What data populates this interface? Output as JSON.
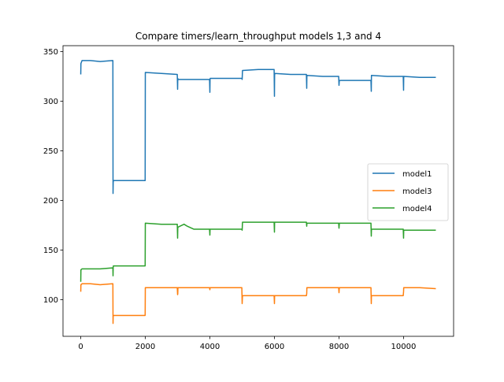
{
  "chart_data": {
    "type": "line",
    "title": "Compare timers/learn_throughput models 1,3 and 4",
    "xlabel": "",
    "ylabel": "",
    "xlim": [
      -550,
      11550
    ],
    "ylim": [
      63,
      356
    ],
    "x_ticks": [
      0,
      2000,
      4000,
      6000,
      8000,
      10000
    ],
    "y_ticks": [
      100,
      150,
      200,
      250,
      300,
      350
    ],
    "grid": false,
    "legend_position": "center-right",
    "series": [
      {
        "name": "model1",
        "color": "#1f77b4",
        "x": [
          0,
          5,
          40,
          300,
          600,
          980,
          995,
          1000,
          1005,
          1010,
          1500,
          1990,
          1995,
          2000,
          2010,
          2500,
          2990,
          3000,
          3005,
          3010,
          3500,
          3990,
          4000,
          4005,
          4010,
          4500,
          4990,
          5000,
          5010,
          5500,
          5990,
          6000,
          6005,
          6010,
          6500,
          6990,
          7000,
          7005,
          7010,
          7500,
          7990,
          8000,
          8010,
          8500,
          8990,
          9000,
          9005,
          9010,
          9500,
          9990,
          10000,
          10005,
          10010,
          10500,
          11000
        ],
        "y": [
          327,
          338,
          341,
          341,
          340,
          341,
          341,
          207,
          218,
          220,
          220,
          220,
          220,
          329,
          329,
          328,
          327,
          312,
          323,
          322,
          322,
          322,
          309,
          322,
          323,
          323,
          323,
          322,
          331,
          332,
          332,
          305,
          326,
          328,
          327,
          327,
          313,
          326,
          326,
          325,
          325,
          316,
          321,
          321,
          321,
          310,
          326,
          326,
          325,
          325,
          311,
          325,
          325,
          324,
          324
        ]
      },
      {
        "name": "model3",
        "color": "#ff7f0e",
        "x": [
          0,
          5,
          40,
          300,
          600,
          980,
          995,
          1000,
          1005,
          1010,
          1500,
          1990,
          1995,
          2000,
          2010,
          2500,
          2990,
          3000,
          3005,
          3010,
          3500,
          3990,
          4000,
          4005,
          4010,
          4500,
          4990,
          5000,
          5010,
          5500,
          5990,
          6000,
          6005,
          6010,
          6500,
          6990,
          7000,
          7005,
          7010,
          7500,
          7990,
          8000,
          8010,
          8500,
          8990,
          9000,
          9005,
          9010,
          9500,
          9990,
          10000,
          10005,
          10010,
          10500,
          11000
        ],
        "y": [
          108,
          115,
          116,
          116,
          115,
          116,
          116,
          76,
          84,
          84,
          84,
          84,
          84,
          112,
          112,
          112,
          112,
          105,
          106,
          112,
          112,
          112,
          110,
          112,
          112,
          112,
          112,
          96,
          104,
          104,
          104,
          96,
          104,
          104,
          104,
          104,
          106,
          112,
          112,
          112,
          112,
          107,
          112,
          112,
          112,
          96,
          104,
          104,
          104,
          104,
          108,
          112,
          112,
          112,
          111
        ]
      },
      {
        "name": "model4",
        "color": "#2ca02c",
        "x": [
          0,
          5,
          40,
          300,
          600,
          980,
          995,
          1000,
          1005,
          1010,
          1500,
          1990,
          1995,
          2000,
          2010,
          2500,
          2990,
          3000,
          3005,
          3010,
          3200,
          3300,
          3500,
          3990,
          4000,
          4005,
          4010,
          4500,
          4990,
          5000,
          5010,
          5500,
          5990,
          6000,
          6005,
          6010,
          6500,
          6990,
          7000,
          7005,
          7010,
          7500,
          7990,
          8000,
          8010,
          8500,
          8990,
          9000,
          9005,
          9010,
          9500,
          9990,
          10000,
          10005,
          10010,
          10500,
          11000
        ],
        "y": [
          118,
          130,
          131,
          131,
          131,
          132,
          132,
          124,
          133,
          134,
          134,
          134,
          134,
          177,
          177,
          176,
          176,
          162,
          172,
          173,
          176,
          174,
          171,
          171,
          165,
          171,
          171,
          171,
          171,
          170,
          178,
          178,
          178,
          168,
          178,
          178,
          178,
          178,
          174,
          177,
          177,
          177,
          177,
          172,
          177,
          177,
          177,
          164,
          171,
          171,
          171,
          171,
          162,
          170,
          170,
          170,
          170
        ]
      }
    ]
  }
}
